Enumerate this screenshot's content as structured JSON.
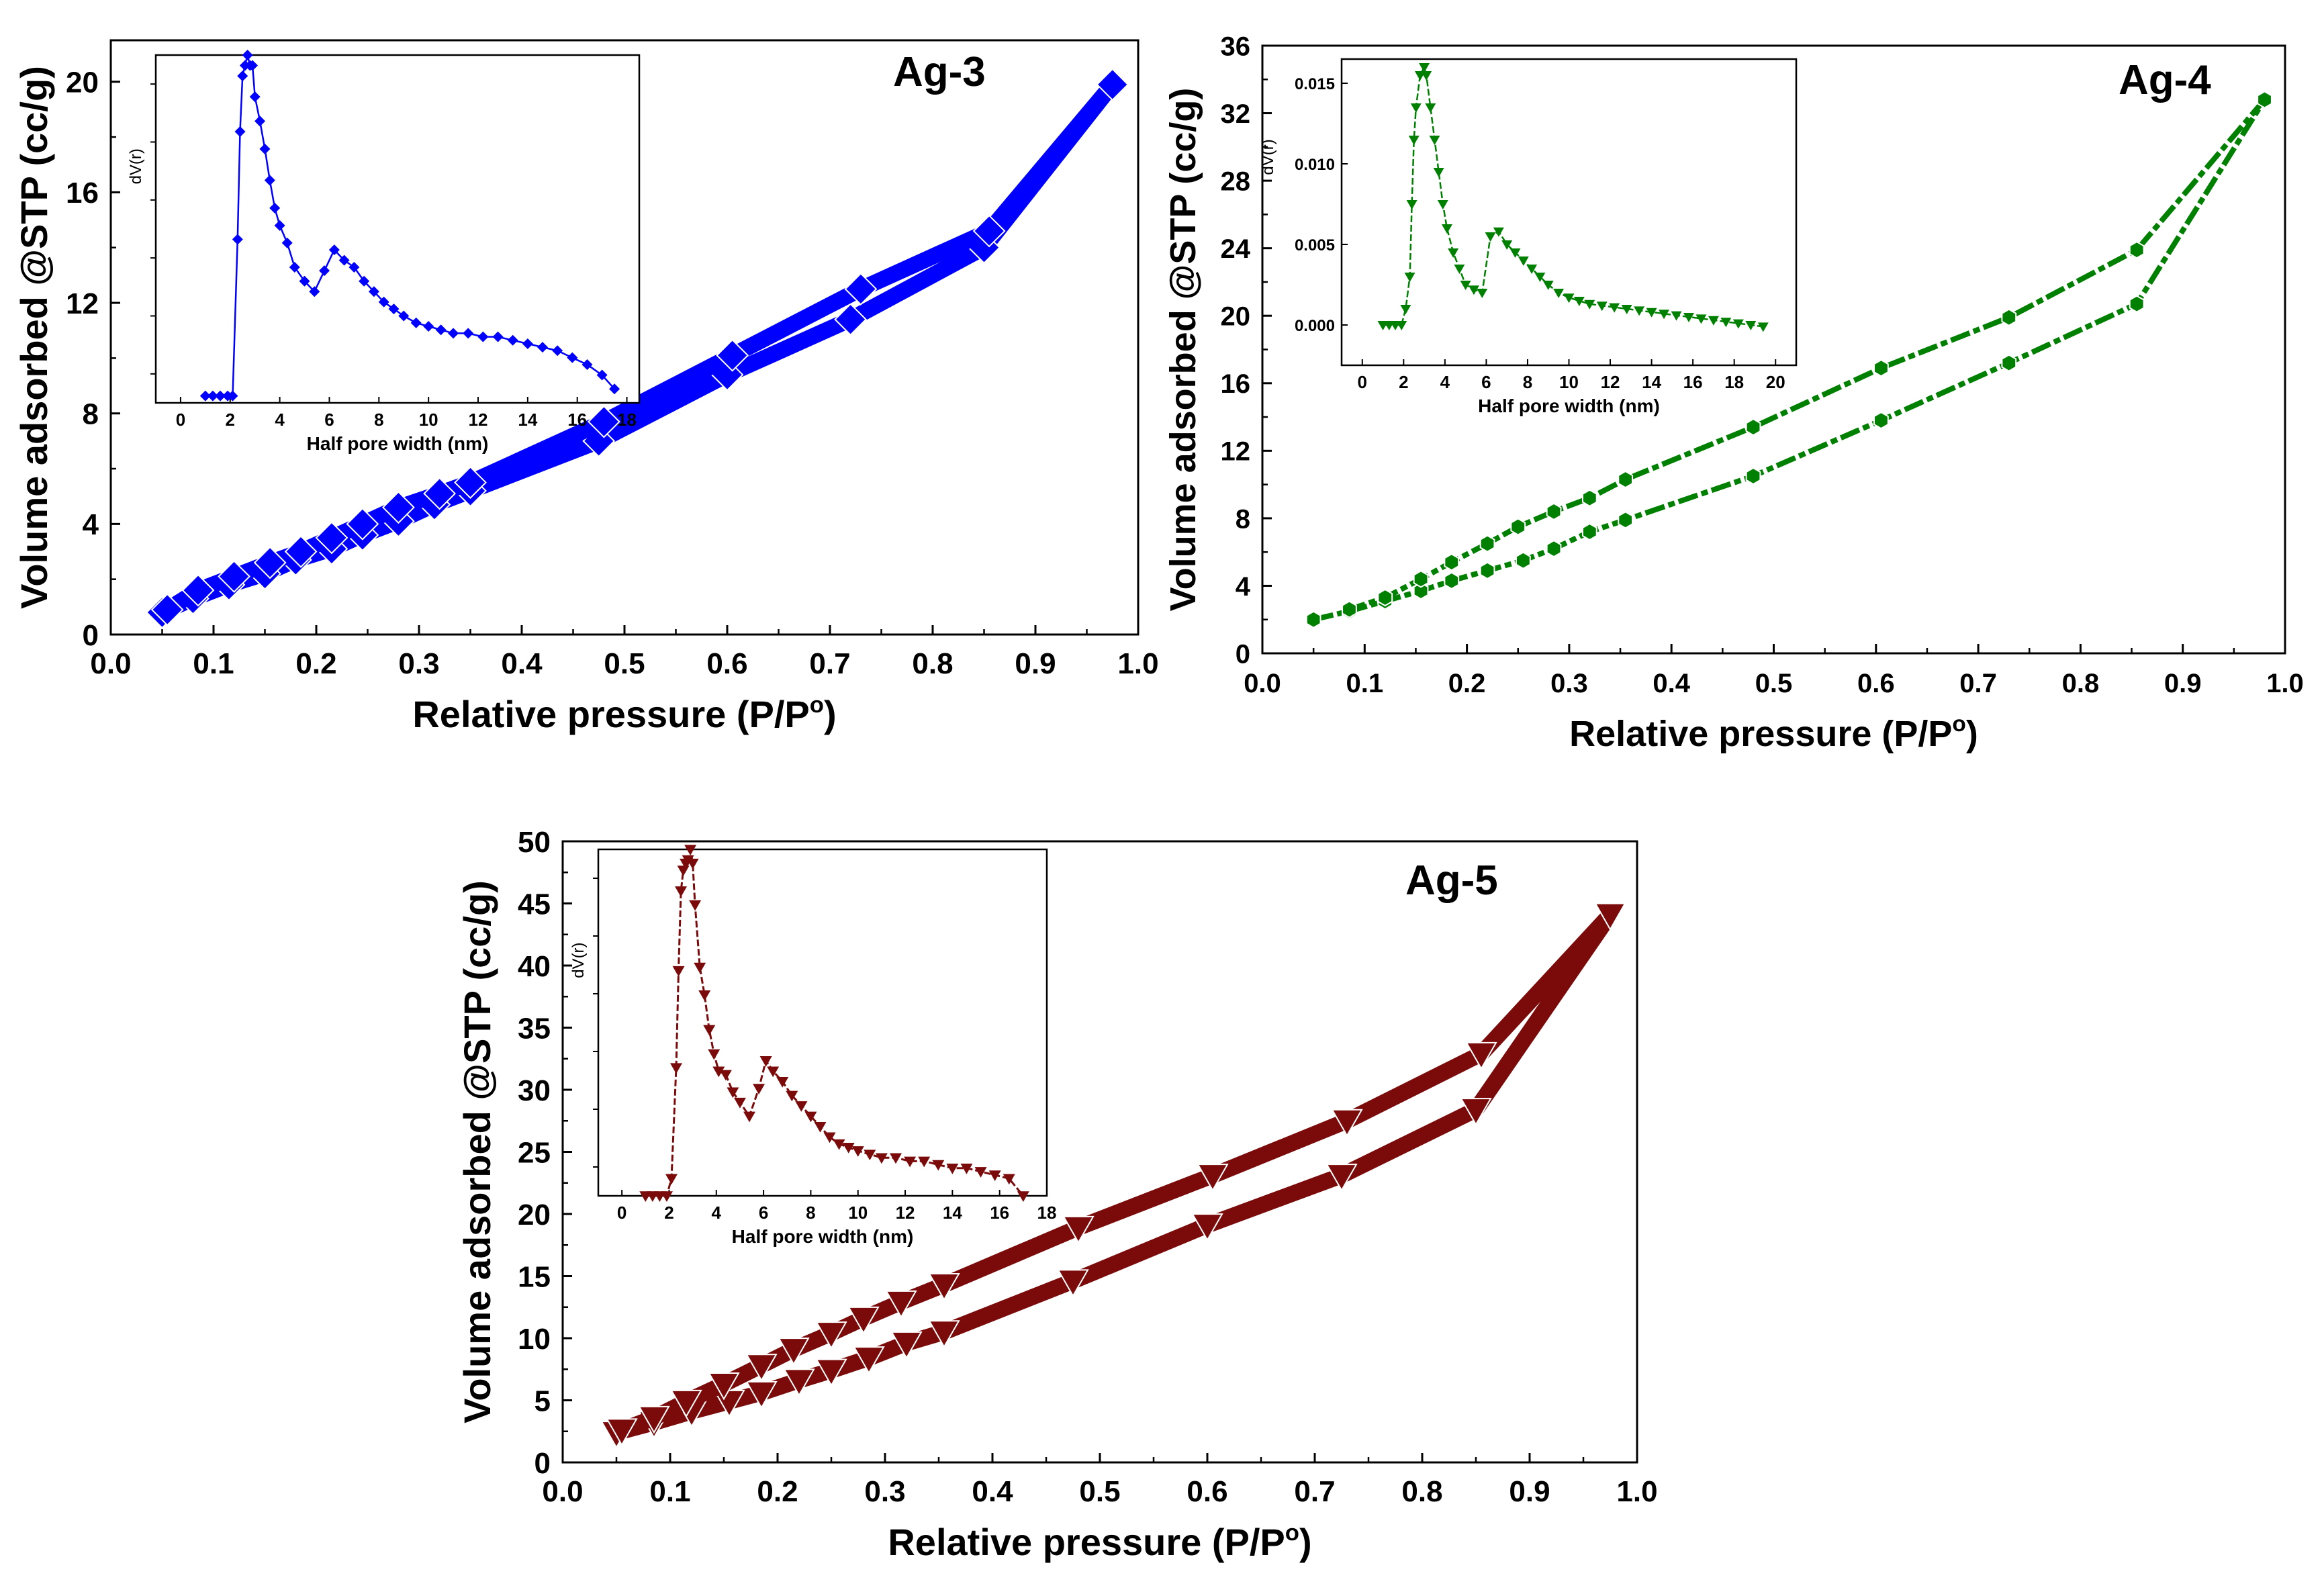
{
  "chart_data": [
    {
      "type": "line",
      "sample_label": "Ag-3",
      "color": "#0000ff",
      "marker": "diamond",
      "xlabel": "Relative pressure (P/P",
      "xlabel_sup": "o",
      "xlabel_end": ")",
      "ylabel": "Volume adsorbed @STP (cc/g)",
      "xlim": [
        0.0,
        1.0
      ],
      "ylim": [
        0,
        21.5
      ],
      "xticks": [
        0.0,
        0.1,
        0.2,
        0.3,
        0.4,
        0.5,
        0.6,
        0.7,
        0.8,
        0.9,
        1.0
      ],
      "xtick_labels": [
        "0.0",
        "0.1",
        "0.2",
        "0.3",
        "0.4",
        "0.5",
        "0.6",
        "0.7",
        "0.8",
        "0.9",
        "1.0"
      ],
      "yticks": [
        0,
        4,
        8,
        12,
        16,
        20
      ],
      "ytick_labels": [
        "0",
        "4",
        "8",
        "12",
        "16",
        "20"
      ],
      "series": [
        {
          "name": "adsorption",
          "x": [
            0.05,
            0.08,
            0.115,
            0.15,
            0.18,
            0.215,
            0.245,
            0.28,
            0.315,
            0.35,
            0.475,
            0.6,
            0.72,
            0.85,
            0.975
          ],
          "y": [
            0.8,
            1.3,
            1.8,
            2.2,
            2.7,
            3.1,
            3.6,
            4.1,
            4.7,
            5.2,
            7.0,
            9.4,
            11.4,
            14.0,
            19.9
          ]
        },
        {
          "name": "desorption",
          "x": [
            0.975,
            0.855,
            0.73,
            0.605,
            0.48,
            0.35,
            0.32,
            0.28,
            0.245,
            0.215,
            0.185,
            0.155,
            0.12,
            0.085,
            0.055
          ],
          "y": [
            19.9,
            14.6,
            12.5,
            10.1,
            7.7,
            5.5,
            5.1,
            4.6,
            4.0,
            3.5,
            3.0,
            2.6,
            2.1,
            1.6,
            0.9
          ]
        }
      ],
      "inset": {
        "xlabel": "Half pore width (nm)",
        "ylabel": "dV(r)",
        "xlim": [
          -1,
          18.5
        ],
        "ylim": [
          0,
          1
        ],
        "xticks": [
          0,
          2,
          4,
          6,
          8,
          10,
          12,
          14,
          16,
          18
        ],
        "xtick_labels": [
          "0",
          "2",
          "4",
          "6",
          "8",
          "10",
          "12",
          "14",
          "16",
          "18"
        ],
        "ytick_count": 6,
        "marker": "diamond",
        "x": [
          1.0,
          1.3,
          1.6,
          1.9,
          2.1,
          2.3,
          2.4,
          2.5,
          2.6,
          2.7,
          2.8,
          2.9,
          3.0,
          3.2,
          3.4,
          3.6,
          3.8,
          4.0,
          4.3,
          4.6,
          5.0,
          5.4,
          5.8,
          6.2,
          6.6,
          7.0,
          7.4,
          7.8,
          8.2,
          8.6,
          9.0,
          9.5,
          10.0,
          10.5,
          11.0,
          11.6,
          12.2,
          12.8,
          13.4,
          14.0,
          14.6,
          15.2,
          15.8,
          16.4,
          17.0,
          17.5
        ],
        "y": [
          0.02,
          0.02,
          0.02,
          0.02,
          0.02,
          0.47,
          0.78,
          0.94,
          0.97,
          1.0,
          0.97,
          0.97,
          0.88,
          0.81,
          0.73,
          0.64,
          0.56,
          0.51,
          0.46,
          0.39,
          0.35,
          0.32,
          0.38,
          0.44,
          0.41,
          0.39,
          0.35,
          0.32,
          0.29,
          0.27,
          0.25,
          0.23,
          0.22,
          0.21,
          0.2,
          0.2,
          0.19,
          0.19,
          0.18,
          0.17,
          0.16,
          0.15,
          0.13,
          0.11,
          0.08,
          0.04
        ]
      }
    },
    {
      "type": "line",
      "sample_label": "Ag-4",
      "color": "#008000",
      "marker": "hexagon",
      "xlabel": "Relative pressure (P/P",
      "xlabel_sup": "o",
      "xlabel_end": ")",
      "ylabel": "Volume adsorbed @STP (cc/g)",
      "xlim": [
        0.0,
        1.0
      ],
      "ylim": [
        0,
        36
      ],
      "xticks": [
        0.0,
        0.1,
        0.2,
        0.3,
        0.4,
        0.5,
        0.6,
        0.7,
        0.8,
        0.9,
        1.0
      ],
      "xtick_labels": [
        "0.0",
        "0.1",
        "0.2",
        "0.3",
        "0.4",
        "0.5",
        "0.6",
        "0.7",
        "0.8",
        "0.9",
        "1.0"
      ],
      "yticks": [
        0,
        4,
        8,
        12,
        16,
        20,
        24,
        28,
        32,
        36
      ],
      "ytick_labels": [
        "0",
        "4",
        "8",
        "12",
        "16",
        "20",
        "24",
        "28",
        "32",
        "36"
      ],
      "series": [
        {
          "name": "adsorption",
          "x": [
            0.05,
            0.085,
            0.12,
            0.155,
            0.185,
            0.22,
            0.255,
            0.285,
            0.32,
            0.355,
            0.48,
            0.605,
            0.73,
            0.855,
            0.98
          ],
          "y": [
            2.0,
            2.5,
            3.1,
            3.7,
            4.3,
            4.9,
            5.5,
            6.2,
            7.2,
            7.9,
            10.5,
            13.8,
            17.2,
            20.7,
            32.8
          ]
        },
        {
          "name": "desorption",
          "x": [
            0.98,
            0.855,
            0.73,
            0.605,
            0.48,
            0.355,
            0.32,
            0.285,
            0.25,
            0.22,
            0.185,
            0.155,
            0.12,
            0.085
          ],
          "y": [
            32.8,
            23.9,
            19.9,
            16.9,
            13.4,
            10.3,
            9.2,
            8.4,
            7.5,
            6.5,
            5.4,
            4.4,
            3.3,
            2.6
          ]
        }
      ],
      "inset": {
        "xlabel": "Half pore width (nm)",
        "ylabel": "dV(r)",
        "xlim": [
          -1,
          21
        ],
        "ylim": [
          -0.0025,
          0.0165
        ],
        "xticks": [
          0,
          2,
          4,
          6,
          8,
          10,
          12,
          14,
          16,
          18,
          20
        ],
        "xtick_labels": [
          "0",
          "2",
          "4",
          "6",
          "8",
          "10",
          "12",
          "14",
          "16",
          "18",
          "20"
        ],
        "yticks": [
          0.0,
          0.005,
          0.01,
          0.015
        ],
        "ytick_labels": [
          "0.000",
          "0.005",
          "0.010",
          "0.015"
        ],
        "marker": "triangle-down",
        "x": [
          1.0,
          1.3,
          1.6,
          1.9,
          2.1,
          2.3,
          2.4,
          2.5,
          2.6,
          2.8,
          3.0,
          3.1,
          3.3,
          3.5,
          3.7,
          3.9,
          4.1,
          4.4,
          4.7,
          5.0,
          5.4,
          5.8,
          6.2,
          6.6,
          7.0,
          7.4,
          7.8,
          8.2,
          8.6,
          9.0,
          9.5,
          10.0,
          10.5,
          11.0,
          11.6,
          12.2,
          12.8,
          13.4,
          14.0,
          14.6,
          15.2,
          15.8,
          16.4,
          17.0,
          17.6,
          18.2,
          18.8,
          19.4
        ],
        "y": [
          0.0,
          0.0,
          0.0,
          0.0,
          0.001,
          0.003,
          0.0075,
          0.0115,
          0.0135,
          0.0155,
          0.016,
          0.0155,
          0.0135,
          0.0115,
          0.0095,
          0.0075,
          0.006,
          0.0045,
          0.0035,
          0.0025,
          0.0022,
          0.002,
          0.0055,
          0.0058,
          0.005,
          0.0045,
          0.004,
          0.0035,
          0.003,
          0.0025,
          0.002,
          0.0017,
          0.0015,
          0.0013,
          0.0012,
          0.0011,
          0.001,
          0.0009,
          0.0008,
          0.0007,
          0.0006,
          0.0005,
          0.0004,
          0.0003,
          0.0002,
          0.0001,
          0.0,
          -0.0001
        ]
      }
    },
    {
      "type": "line",
      "sample_label": "Ag-5",
      "color": "#7b0a0a",
      "marker": "triangle-down",
      "xlabel": "Relative pressure (P/P",
      "xlabel_sup": "o",
      "xlabel_end": ")",
      "ylabel": "Volume adsorbed @STP (cc/g)",
      "xlim": [
        0.0,
        1.0
      ],
      "ylim": [
        0,
        50
      ],
      "xticks": [
        0.0,
        0.1,
        0.2,
        0.3,
        0.4,
        0.5,
        0.6,
        0.7,
        0.8,
        0.9,
        1.0
      ],
      "xtick_labels": [
        "0.0",
        "0.1",
        "0.2",
        "0.3",
        "0.4",
        "0.5",
        "0.6",
        "0.7",
        "0.8",
        "0.9",
        "1.0"
      ],
      "yticks": [
        0,
        5,
        10,
        15,
        20,
        25,
        30,
        35,
        40,
        45,
        50
      ],
      "ytick_labels": [
        "0",
        "5",
        "10",
        "15",
        "20",
        "25",
        "30",
        "35",
        "40",
        "45",
        "50"
      ],
      "series": [
        {
          "name": "adsorption",
          "x": [
            0.05,
            0.085,
            0.12,
            0.155,
            0.185,
            0.22,
            0.25,
            0.285,
            0.32,
            0.355,
            0.475,
            0.6,
            0.725,
            0.85,
            0.975
          ],
          "y": [
            2.4,
            3.2,
            4.1,
            4.9,
            5.6,
            6.6,
            7.4,
            8.4,
            9.6,
            10.5,
            14.6,
            19.1,
            23.1,
            28.4,
            44.1
          ]
        },
        {
          "name": "desorption",
          "x": [
            0.975,
            0.855,
            0.73,
            0.605,
            0.48,
            0.355,
            0.315,
            0.28,
            0.25,
            0.215,
            0.185,
            0.15,
            0.115,
            0.085,
            0.055
          ],
          "y": [
            44.1,
            32.9,
            27.5,
            23.1,
            18.9,
            14.3,
            12.9,
            11.6,
            10.4,
            9.1,
            7.8,
            6.3,
            4.9,
            3.6,
            2.6
          ]
        }
      ],
      "inset": {
        "xlabel": "Half pore width (nm)",
        "ylabel": "dV(r)",
        "xlim": [
          -1,
          18
        ],
        "ylim": [
          0,
          1
        ],
        "xticks": [
          0,
          2,
          4,
          6,
          8,
          10,
          12,
          14,
          16,
          18
        ],
        "xtick_labels": [
          "0",
          "2",
          "4",
          "6",
          "8",
          "10",
          "12",
          "14",
          "16",
          "18"
        ],
        "ytick_count": 6,
        "marker": "triangle-down",
        "x": [
          1.0,
          1.3,
          1.6,
          1.9,
          2.1,
          2.3,
          2.4,
          2.5,
          2.6,
          2.7,
          2.8,
          2.9,
          3.0,
          3.1,
          3.3,
          3.5,
          3.7,
          3.9,
          4.1,
          4.4,
          4.7,
          5.0,
          5.4,
          5.8,
          6.1,
          6.4,
          6.8,
          7.2,
          7.6,
          8.0,
          8.4,
          8.8,
          9.2,
          9.6,
          10.0,
          10.5,
          11.0,
          11.6,
          12.2,
          12.8,
          13.4,
          14.0,
          14.6,
          15.2,
          15.8,
          16.4,
          17.0
        ],
        "y": [
          0.0,
          0.0,
          0.0,
          0.0,
          0.05,
          0.37,
          0.65,
          0.88,
          0.94,
          0.96,
          0.97,
          1.0,
          0.96,
          0.84,
          0.66,
          0.58,
          0.48,
          0.41,
          0.36,
          0.35,
          0.3,
          0.27,
          0.23,
          0.31,
          0.39,
          0.36,
          0.33,
          0.29,
          0.26,
          0.23,
          0.2,
          0.17,
          0.15,
          0.14,
          0.13,
          0.12,
          0.11,
          0.11,
          0.1,
          0.1,
          0.09,
          0.08,
          0.08,
          0.07,
          0.06,
          0.05,
          0.0
        ]
      }
    }
  ]
}
